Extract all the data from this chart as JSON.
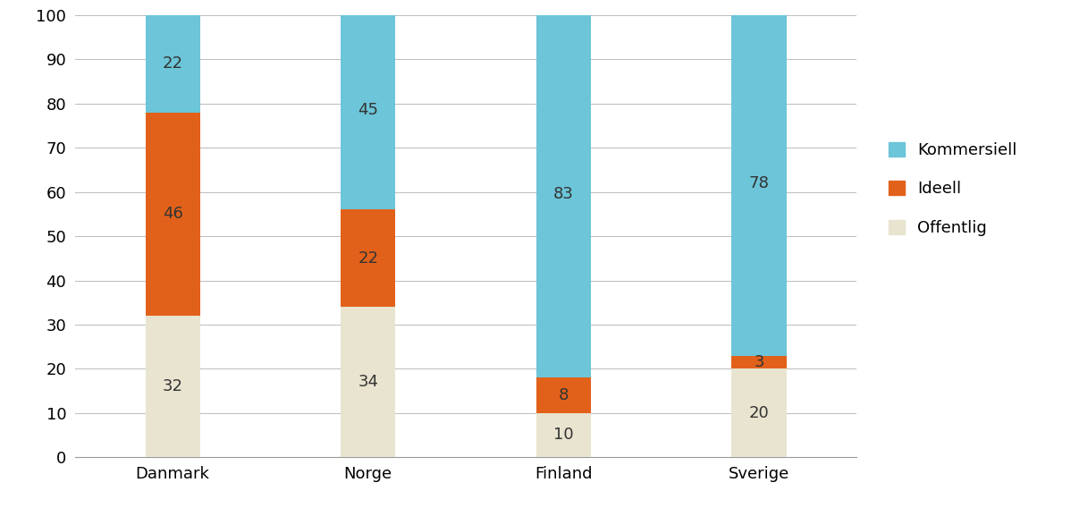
{
  "categories": [
    "Danmark",
    "Norge",
    "Finland",
    "Sverige"
  ],
  "offentlig": [
    32,
    34,
    10,
    20
  ],
  "ideell": [
    46,
    22,
    8,
    3
  ],
  "kommersiell": [
    22,
    45,
    83,
    78
  ],
  "color_offentlig": "#e8e4cf",
  "color_ideell": "#e2611a",
  "color_kommersiell": "#6cc5d8",
  "legend_labels": [
    "Kommersiell",
    "Ideell",
    "Offentlig"
  ],
  "ylim": [
    0,
    100
  ],
  "yticks": [
    0,
    10,
    20,
    30,
    40,
    50,
    60,
    70,
    80,
    90,
    100
  ],
  "bar_width": 0.28,
  "label_fontsize": 13,
  "tick_fontsize": 13,
  "legend_fontsize": 13,
  "background_color": "#ffffff",
  "grid_color": "#bbbbbb"
}
